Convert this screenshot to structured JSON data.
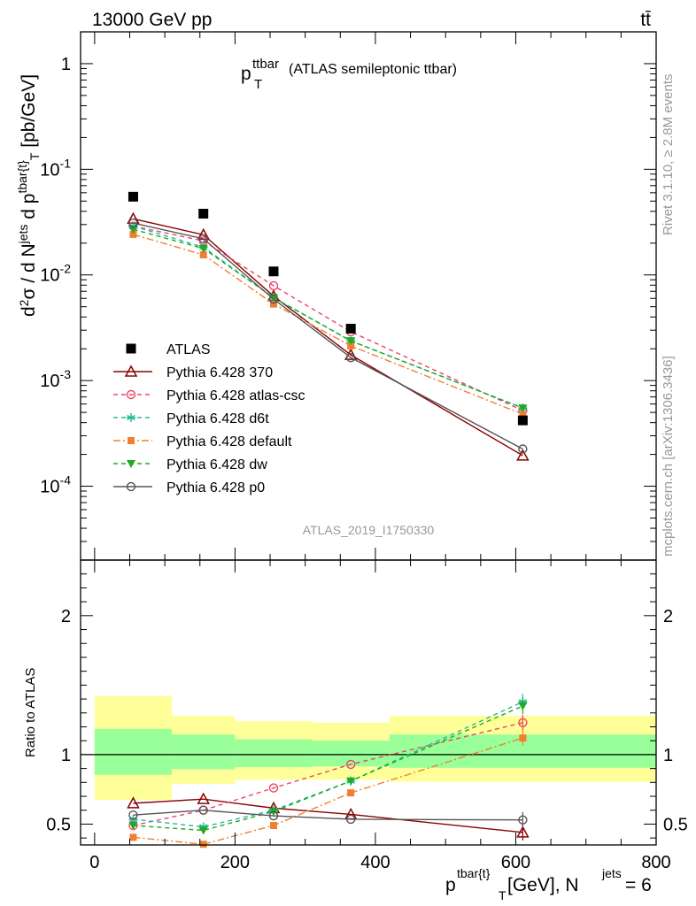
{
  "header": {
    "energy": "13000 GeV pp",
    "process": "tt̄"
  },
  "side": {
    "rivet": "Rivet 3.1.10, ≥ 2.8M events",
    "mcplots": "mcplots.cern.ch [arXiv:1306.3436]"
  },
  "chart_data": [
    {
      "type": "line",
      "title_main": "p",
      "title_sup": "ttbar",
      "title_sub": "T",
      "title_rest": "(ATLAS semileptonic ttbar)",
      "analysis_tag": "ATLAS_2019_I1750330",
      "ylabel": "d²σ / d N^jets d p^tbar{t}_T [pb/GeV]",
      "yscale": "log",
      "ylim": [
        2e-05,
        2
      ],
      "xlim": [
        -20,
        800
      ],
      "ytick_labels": [
        "10^-4",
        "10^-3",
        "10^-2",
        "10^-1",
        "1"
      ],
      "legend_placement": "lower-left",
      "data": {
        "name": "ATLAS",
        "x": [
          55,
          155,
          255,
          365,
          610
        ],
        "y": [
          0.055,
          0.038,
          0.0108,
          0.0031,
          0.00042
        ]
      },
      "series": [
        {
          "name": "Pythia 6.428 370",
          "color": "#8b0000",
          "marker": "triangle-open",
          "dash": "",
          "x": [
            55,
            155,
            255,
            365,
            610
          ],
          "y": [
            0.034,
            0.024,
            0.0063,
            0.00175,
            0.000195
          ]
        },
        {
          "name": "Pythia 6.428 atlas-csc",
          "color": "#ee4466",
          "marker": "circle-open",
          "dash": "5,4",
          "x": [
            55,
            155,
            255,
            365,
            610
          ],
          "y": [
            0.029,
            0.021,
            0.0079,
            0.0029,
            0.00052
          ]
        },
        {
          "name": "Pythia 6.428 d6t",
          "color": "#22bb99",
          "marker": "asterisk",
          "dash": "5,4",
          "x": [
            55,
            155,
            255,
            365,
            610
          ],
          "y": [
            0.029,
            0.0183,
            0.0061,
            0.00237,
            0.00055
          ]
        },
        {
          "name": "Pythia 6.428 default",
          "color": "#f08030",
          "marker": "square",
          "dash": "8,3,2,3",
          "x": [
            55,
            155,
            255,
            365,
            610
          ],
          "y": [
            0.0242,
            0.0155,
            0.0053,
            0.00213,
            0.00048
          ]
        },
        {
          "name": "Pythia 6.428 dw",
          "color": "#22aa22",
          "marker": "triangle-down",
          "dash": "5,4",
          "x": [
            55,
            155,
            255,
            365,
            610
          ],
          "y": [
            0.027,
            0.0178,
            0.0061,
            0.00238,
            0.00055
          ]
        },
        {
          "name": "Pythia 6.428 p0",
          "color": "#555555",
          "marker": "circle-open",
          "dash": "",
          "x": [
            55,
            155,
            255,
            365,
            610
          ],
          "y": [
            0.031,
            0.022,
            0.0059,
            0.00165,
            0.000225
          ]
        }
      ]
    },
    {
      "type": "line",
      "ylabel": "Ratio to ATLAS",
      "xlabel_main": "p",
      "xlabel_sup": "tbar{t}",
      "xlabel_sub": "T",
      "xlabel_rest": " [GeV], N",
      "xlabel_sup2": "jets",
      "xlabel_end": " = 6",
      "ylim": [
        0.35,
        2.4
      ],
      "xlim": [
        -20,
        800
      ],
      "yticks": [
        0.5,
        1,
        2
      ],
      "ytick_labels": [
        "0.5",
        "1",
        "2"
      ],
      "xticks": [
        0,
        200,
        400,
        600,
        800
      ],
      "xtick_labels": [
        "0",
        "200",
        "400",
        "600",
        "800"
      ],
      "bands": [
        {
          "x0": 0,
          "x1": 110,
          "inner": [
            0.855,
            1.185
          ],
          "outer": [
            0.675,
            1.42
          ]
        },
        {
          "x0": 110,
          "x1": 200,
          "inner": [
            0.895,
            1.145
          ],
          "outer": [
            0.79,
            1.28
          ]
        },
        {
          "x0": 200,
          "x1": 310,
          "inner": [
            0.91,
            1.11
          ],
          "outer": [
            0.82,
            1.24
          ]
        },
        {
          "x0": 310,
          "x1": 420,
          "inner": [
            0.915,
            1.1
          ],
          "outer": [
            0.82,
            1.23
          ]
        },
        {
          "x0": 420,
          "x1": 800,
          "inner": [
            0.905,
            1.145
          ],
          "outer": [
            0.805,
            1.28
          ]
        }
      ],
      "series": [
        {
          "name": "Pythia 6.428 370",
          "color": "#8b0000",
          "marker": "triangle-open",
          "dash": "",
          "x": [
            55,
            155,
            255,
            365,
            610
          ],
          "y": [
            0.65,
            0.68,
            0.615,
            0.57,
            0.44
          ]
        },
        {
          "name": "Pythia 6.428 atlas-csc",
          "color": "#ee4466",
          "marker": "circle-open",
          "dash": "5,4",
          "x": [
            55,
            155,
            255,
            365,
            610
          ],
          "y": [
            0.49,
            0.6,
            0.76,
            0.93,
            1.23
          ]
        },
        {
          "name": "Pythia 6.428 d6t",
          "color": "#22bb99",
          "marker": "asterisk",
          "dash": "5,4",
          "x": [
            55,
            155,
            255,
            365,
            610
          ],
          "y": [
            0.535,
            0.48,
            0.6,
            0.81,
            1.38
          ]
        },
        {
          "name": "Pythia 6.428 default",
          "color": "#f08030",
          "marker": "square",
          "dash": "8,3,2,3",
          "x": [
            55,
            155,
            255,
            365,
            610
          ],
          "y": [
            0.405,
            0.355,
            0.49,
            0.725,
            1.12
          ]
        },
        {
          "name": "Pythia 6.428 dw",
          "color": "#22aa22",
          "marker": "triangle-down",
          "dash": "5,4",
          "x": [
            55,
            155,
            255,
            365,
            610
          ],
          "y": [
            0.49,
            0.455,
            0.59,
            0.81,
            1.35
          ]
        },
        {
          "name": "Pythia 6.428 p0",
          "color": "#555555",
          "marker": "circle-open",
          "dash": "",
          "x": [
            55,
            155,
            255,
            365,
            610
          ],
          "y": [
            0.565,
            0.6,
            0.56,
            0.535,
            0.53
          ]
        }
      ]
    }
  ]
}
